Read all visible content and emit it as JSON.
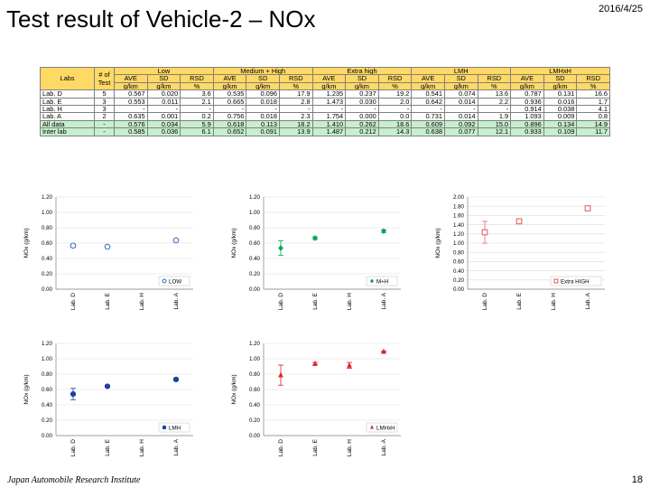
{
  "slide": {
    "title": "Test result of Vehicle-2 – NOx",
    "date": "2016/4/25",
    "footer": "Japan Automobile Research Institute",
    "page_number": "18"
  },
  "table": {
    "header_labs": "Labs",
    "header_ntests": "# of Test",
    "groups": [
      "Low",
      "Medium + High",
      "Extra high",
      "LMH",
      "LMHxH"
    ],
    "subheaders": [
      "AVE",
      "SD",
      "RSD"
    ],
    "units": [
      "g/km",
      "g/km",
      "%"
    ],
    "rows": [
      {
        "lab": "Lab. D",
        "n": "5",
        "cells": [
          "0.567",
          "0.020",
          "3.6",
          "0.535",
          "0.096",
          "17.9",
          "1.235",
          "0.237",
          "19.2",
          "0.541",
          "0.074",
          "13.6",
          "0.787",
          "0.131",
          "16.6"
        ],
        "green": false
      },
      {
        "lab": "Lab. E",
        "n": "3",
        "cells": [
          "0.553",
          "0.011",
          "2.1",
          "0.665",
          "0.018",
          "2.8",
          "1.473",
          "0.030",
          "2.0",
          "0.642",
          "0.014",
          "2.2",
          "0.936",
          "0.016",
          "1.7"
        ],
        "green": false
      },
      {
        "lab": "Lab. H",
        "n": "3",
        "cells": [
          "-",
          "-",
          "-",
          "-",
          "-",
          "-",
          "-",
          "-",
          "-",
          "-",
          "-",
          "-",
          "0.914",
          "0.038",
          "4.1"
        ],
        "green": false
      },
      {
        "lab": "Lab. A",
        "n": "2",
        "cells": [
          "0.635",
          "0.001",
          "0.2",
          "0.756",
          "0.018",
          "2.3",
          "1.754",
          "0.000",
          "0.0",
          "0.731",
          "0.014",
          "1.9",
          "1.093",
          "0.009",
          "0.8"
        ],
        "green": false
      },
      {
        "lab": "All data",
        "n": "-",
        "cells": [
          "0.576",
          "0.034",
          "5.9",
          "0.618",
          "0.113",
          "18.2",
          "1.410",
          "0.262",
          "18.6",
          "0.609",
          "0.092",
          "15.0",
          "0.896",
          "0.134",
          "14.9"
        ],
        "green": true
      },
      {
        "lab": "Inter lab",
        "n": "-",
        "cells": [
          "0.585",
          "0.036",
          "6.1",
          "0.652",
          "0.091",
          "13.9",
          "1.487",
          "0.212",
          "14.3",
          "0.638",
          "0.077",
          "12.1",
          "0.933",
          "0.109",
          "11.7"
        ],
        "green": true
      }
    ]
  },
  "chart_data": [
    {
      "type": "scatter",
      "legend": "LOW",
      "ylabel": "NOx (g/km)",
      "ylim": [
        0,
        1.2
      ],
      "yticks": [
        "0.00",
        "0.20",
        "0.40",
        "0.60",
        "0.80",
        "1.00",
        "1.20"
      ],
      "categories": [
        "Lab. D",
        "Lab. E",
        "Lab. H",
        "Lab. A"
      ],
      "values": [
        0.567,
        0.553,
        null,
        0.635
      ],
      "errors": [
        0.02,
        0.011,
        null,
        0.001
      ],
      "color": "#4472c4",
      "marker": "circle-open",
      "legend_position": "bottom-right"
    },
    {
      "type": "scatter",
      "legend": "M+H",
      "ylabel": "NOx (g/km)",
      "ylim": [
        0,
        1.2
      ],
      "yticks": [
        "0.00",
        "0.20",
        "0.40",
        "0.60",
        "0.80",
        "1.00",
        "1.20"
      ],
      "categories": [
        "Lab. D",
        "Lab. E",
        "Lab. H",
        "Lab. A"
      ],
      "values": [
        0.535,
        0.665,
        null,
        0.756
      ],
      "errors": [
        0.096,
        0.018,
        null,
        0.018
      ],
      "color": "#00a550",
      "marker": "diamond",
      "legend_position": "bottom-right"
    },
    {
      "type": "scatter",
      "legend": "Extra HIGH",
      "ylabel": "NOx (g/km)",
      "ylim": [
        0,
        2.0
      ],
      "yticks": [
        "0.00",
        "0.20",
        "0.40",
        "0.60",
        "0.80",
        "1.00",
        "1.20",
        "1.40",
        "1.60",
        "1.80",
        "2.00"
      ],
      "categories": [
        "Lab. D",
        "Lab. E",
        "Lab. H",
        "Lab. A"
      ],
      "values": [
        1.235,
        1.473,
        null,
        1.754
      ],
      "errors": [
        0.237,
        0.03,
        null,
        0.0
      ],
      "color": "#e06666",
      "marker": "square-open",
      "legend_position": "bottom-right"
    },
    {
      "type": "scatter",
      "legend": "LMH",
      "ylabel": "NOx (g/km)",
      "ylim": [
        0,
        1.2
      ],
      "yticks": [
        "0.00",
        "0.20",
        "0.40",
        "0.60",
        "0.80",
        "1.00",
        "1.20"
      ],
      "categories": [
        "Lab. D",
        "Lab. E",
        "Lab. H",
        "Lab. A"
      ],
      "values": [
        0.541,
        0.642,
        null,
        0.731
      ],
      "errors": [
        0.074,
        0.014,
        null,
        0.014
      ],
      "color": "#1f3fa8",
      "marker": "circle",
      "legend_position": "bottom-right"
    },
    {
      "type": "scatter",
      "legend": "LMHxH",
      "ylabel": "NOx (g/km)",
      "ylim": [
        0,
        1.2
      ],
      "yticks": [
        "0.00",
        "0.20",
        "0.40",
        "0.60",
        "0.80",
        "1.00",
        "1.20"
      ],
      "categories": [
        "Lab. D",
        "Lab. E",
        "Lab. H",
        "Lab. A"
      ],
      "values": [
        0.787,
        0.936,
        0.914,
        1.093
      ],
      "errors": [
        0.131,
        0.016,
        0.038,
        0.009
      ],
      "color": "#e02020",
      "marker": "triangle",
      "legend_position": "bottom-right"
    }
  ]
}
